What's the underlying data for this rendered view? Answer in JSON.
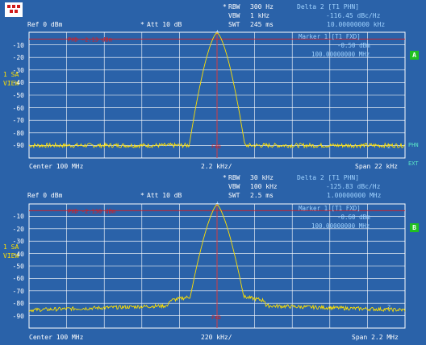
{
  "logo": {
    "name": "rohde-schwarz-logo"
  },
  "side": {
    "line1": "1 SA",
    "line2": "VIEW"
  },
  "panels": [
    {
      "rbw_label": "RBW",
      "rbw_val": "300 Hz",
      "vbw_label": "VBW",
      "vbw_val": "1 kHz",
      "swt_label": "SWT",
      "swt_val": "245 ms",
      "ref": "Ref  0 dBm",
      "att": "Att  10 dB",
      "delta_title": "Delta 2 [T1 PHN]",
      "delta_val": "-116.45 dBc/Hz",
      "delta_freq": "10.00000000 kHz",
      "marker_title": "Marker 1 [T1 FXD]",
      "marker_val": "-0.50 dBm",
      "marker_freq": "100.00000000 MHz",
      "pxd": "PXD -2.13 dBm",
      "center": "Center 100 MHz",
      "div": "2.2 kHz/",
      "span": "Span 22 kHz",
      "badge": "A",
      "right_top": "PHN",
      "right_bot": "EXT",
      "fxd": "FXD",
      "ylabels": [
        "-10",
        "-20",
        "-30",
        "-40",
        "-50",
        "-60",
        "-70",
        "-80",
        "-90"
      ]
    },
    {
      "rbw_label": "RBW",
      "rbw_val": "30 kHz",
      "vbw_label": "VBW",
      "vbw_val": "100 kHz",
      "swt_label": "SWT",
      "swt_val": "2.5 ms",
      "ref": "Ref  0 dBm",
      "att": "Att  10 dB",
      "delta_title": "Delta 2 [T1 PHN]",
      "delta_val": "-125.83 dBc/Hz",
      "delta_freq": "1.00000000 MHz",
      "marker_title": "Marker 1 [T1 FXD]",
      "marker_val": "-0.60 dBm",
      "marker_freq": "100.00000000 MHz",
      "pxd": "PXD -2.130 dBm",
      "center": "Center 100 MHz",
      "div": "220 kHz/",
      "span": "Span 2.2 MHz",
      "badge": "B",
      "fxd": "FXD",
      "ylabels": [
        "-10",
        "-20",
        "-30",
        "-40",
        "-50",
        "-60",
        "-70",
        "-80",
        "-90"
      ]
    }
  ],
  "chart_data": [
    {
      "type": "line",
      "title": "",
      "x_center_MHz": 100,
      "span_kHz": 22,
      "ylim": [
        -100,
        0
      ],
      "unit": "dBm",
      "series": [
        {
          "values_note": "",
          "peak_dBm": -0.5,
          "noise_floor_dBm": -90
        }
      ]
    },
    {
      "type": "line",
      "title": "",
      "x_center_MHz": 100,
      "span_kHz": 2200,
      "ylim": [
        -100,
        0
      ],
      "unit": "dBm",
      "series": [
        {
          "values_note": "",
          "peak_dBm": -0.6,
          "noise_floor_dBm": -83
        }
      ]
    }
  ],
  "colors": {
    "background": "#2a62a9",
    "grid": "#ffffff",
    "trace": "#ffe000",
    "marker_line": "#e01a1a",
    "badge": "#20c020"
  }
}
